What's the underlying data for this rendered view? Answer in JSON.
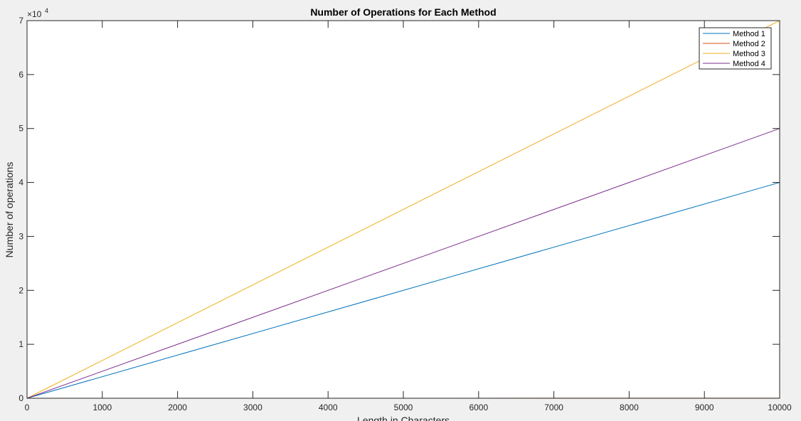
{
  "chart_data": {
    "type": "line",
    "title": "Number of Operations for Each Method",
    "xlabel": "Length in Characters",
    "ylabel": "Number of operations",
    "xlim": [
      0,
      10000
    ],
    "ylim": [
      0,
      70000
    ],
    "x_ticks": [
      0,
      1000,
      2000,
      3000,
      4000,
      5000,
      6000,
      7000,
      8000,
      9000,
      10000
    ],
    "y_ticks": [
      0,
      1,
      2,
      3,
      4,
      5,
      6,
      7
    ],
    "y_exponent_label": "×10",
    "y_exponent_power": "4",
    "grid": false,
    "legend_position": "top-right",
    "series": [
      {
        "name": "Method 1",
        "color": "#0072bd",
        "x": [
          0,
          10000
        ],
        "y": [
          0,
          40000
        ]
      },
      {
        "name": "Method 2",
        "color": "#d95319",
        "x": [
          0,
          10000
        ],
        "y": [
          0,
          15
        ]
      },
      {
        "name": "Method 3",
        "color": "#edb120",
        "x": [
          0,
          10000
        ],
        "y": [
          0,
          70000
        ]
      },
      {
        "name": "Method 4",
        "color": "#7e2f8e",
        "x": [
          0,
          10000
        ],
        "y": [
          0,
          50000
        ]
      }
    ]
  }
}
